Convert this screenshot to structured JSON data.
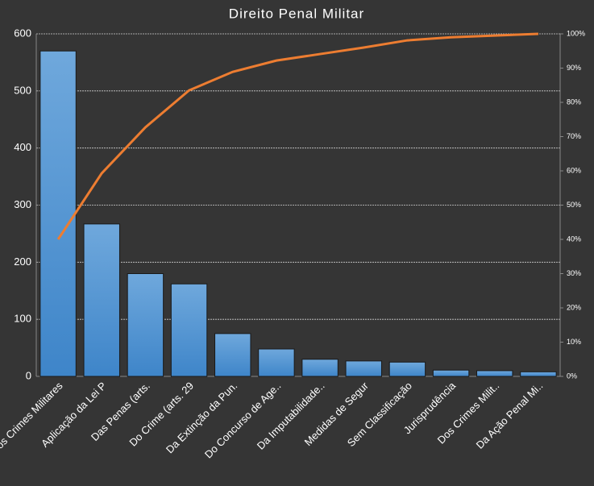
{
  "chart_data": {
    "type": "bar",
    "title": "Direito Penal Militar",
    "categories": [
      "Dos Crimes Militares",
      "Aplicação da Lei P",
      "Das Penas (arts.",
      "Do Crime (arts. 29",
      "Da Extinção da Pun.",
      "Do Concurso de Age..",
      "Da Imputabilidade..",
      "Medidas de Segur",
      "Sem Classificação",
      "Jurisprudência",
      "Dos Crimes Milit..",
      "Da Ação Penal Mi.."
    ],
    "series": [
      {
        "type": "bar",
        "color": "#5b9bd5",
        "values": [
          570,
          267,
          180,
          162,
          75,
          48,
          30,
          27,
          25,
          11,
          10,
          8
        ]
      },
      {
        "type": "line",
        "axis": "y2",
        "color": "#ed7d31",
        "values": [
          40,
          59.3,
          72.7,
          83.5,
          88.9,
          92.2,
          94.1,
          96,
          98.1,
          99,
          99.5,
          100
        ]
      }
    ],
    "ylim": [
      0,
      600
    ],
    "yticks": [
      0,
      100,
      200,
      300,
      400,
      500,
      600
    ],
    "y2lim": [
      0,
      100
    ],
    "y2ticks": [
      {
        "value": 0,
        "label": "0%"
      },
      {
        "value": 10,
        "label": "10%"
      },
      {
        "value": 20,
        "label": "20%"
      },
      {
        "value": 30,
        "label": "30%"
      },
      {
        "value": 40,
        "label": "40%"
      },
      {
        "value": 50,
        "label": "50%"
      },
      {
        "value": 60,
        "label": "60%"
      },
      {
        "value": 70,
        "label": "70%"
      },
      {
        "value": 80,
        "label": "80%"
      },
      {
        "value": 90,
        "label": "90%"
      },
      {
        "value": 100,
        "label": "100%"
      }
    ],
    "grid": true
  }
}
